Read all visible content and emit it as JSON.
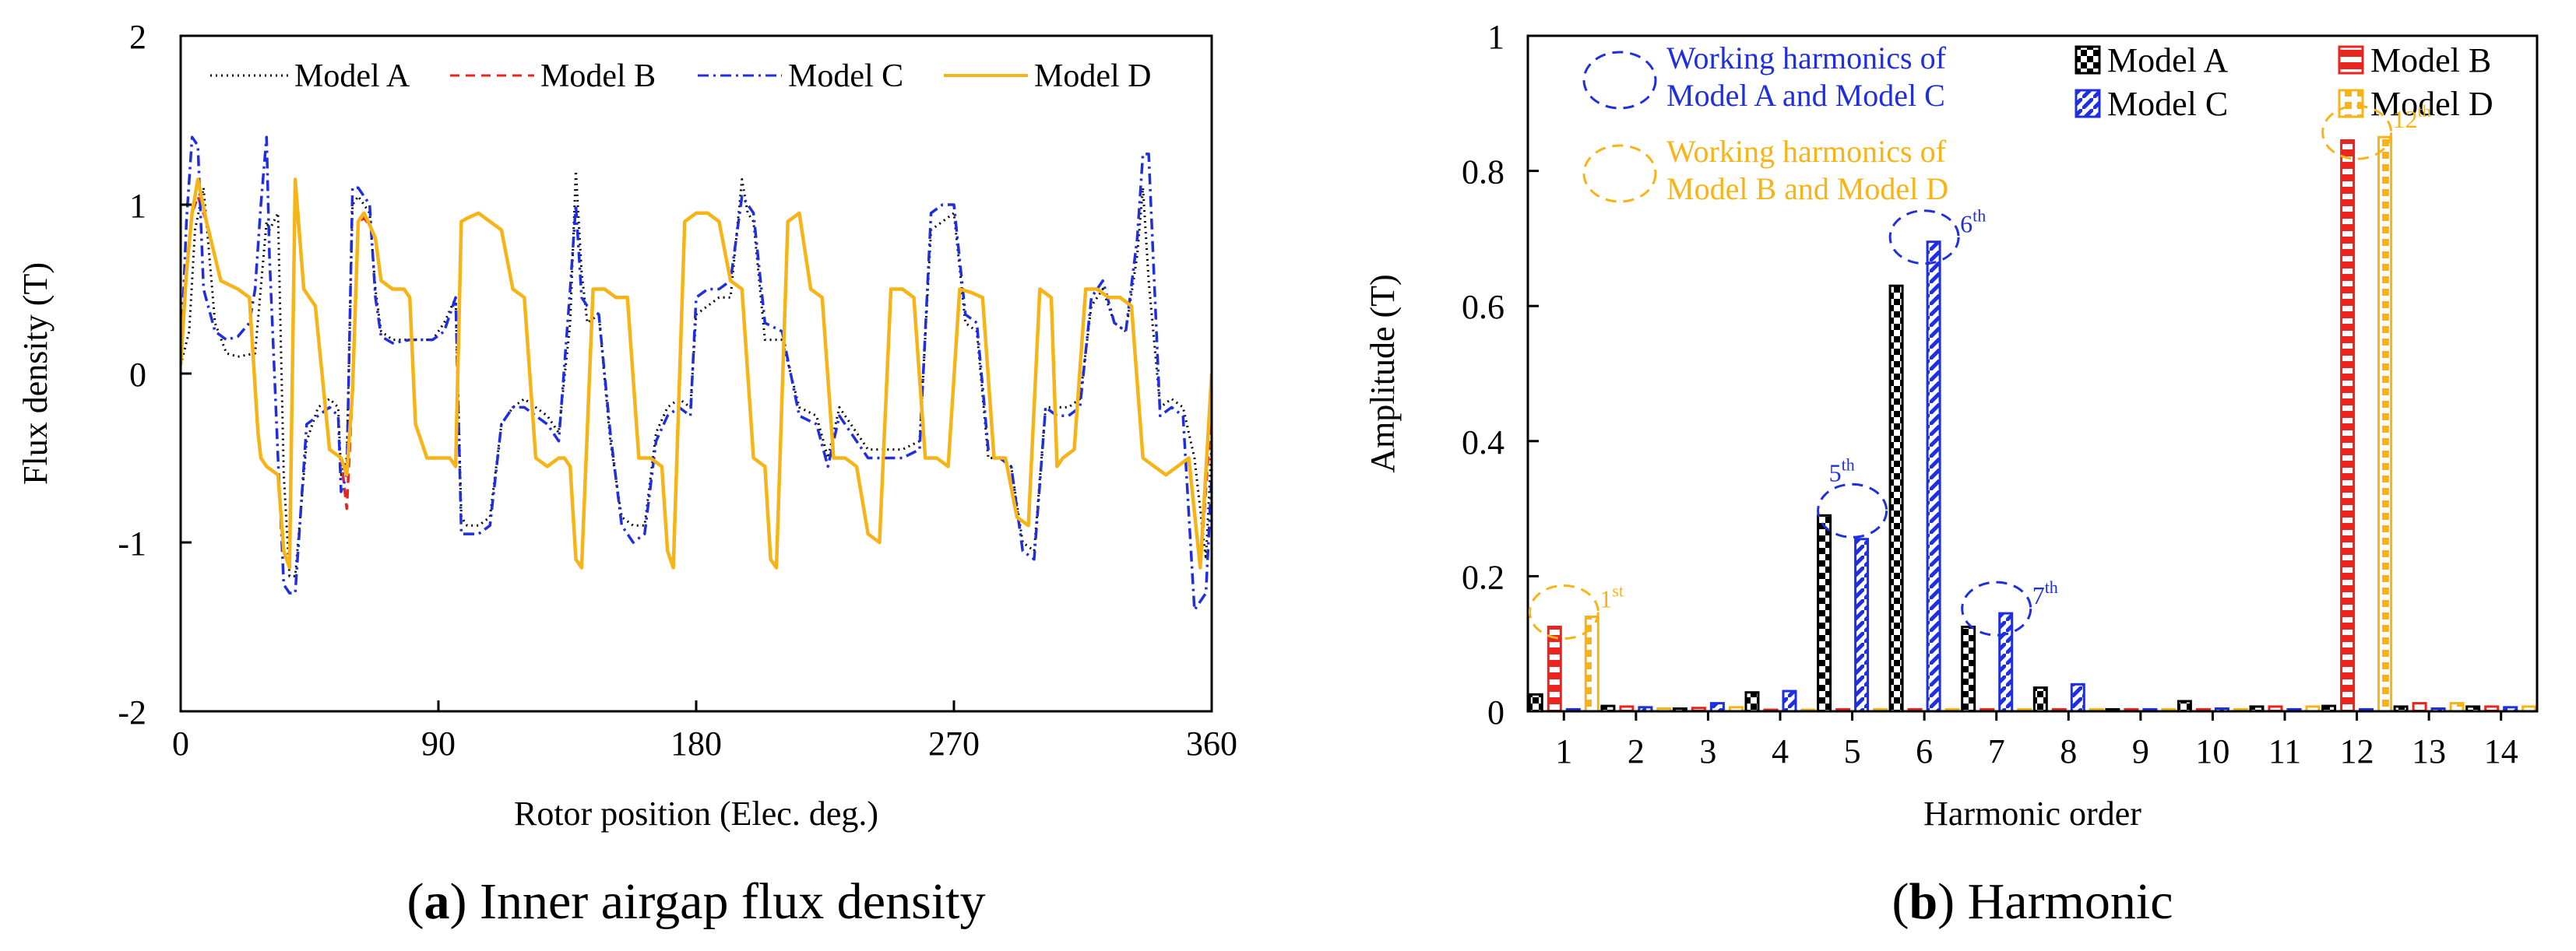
{
  "chart_data": [
    {
      "panel": "a",
      "type": "line",
      "caption_letter": "a",
      "caption_text": "Inner airgap flux density",
      "xlabel": "Rotor position (Elec. deg.)",
      "ylabel": "Flux density (T)",
      "xlim": [
        0,
        360
      ],
      "ylim": [
        -2,
        2
      ],
      "xticks": [
        0,
        90,
        180,
        270,
        360
      ],
      "yticks": [
        -2,
        -1,
        0,
        1,
        2
      ],
      "legend_placement": "top",
      "series": [
        {
          "name": "Model A",
          "color": "#000000",
          "dash": "dotted",
          "x": [
            0,
            3,
            5,
            8,
            12,
            16,
            20,
            26,
            30,
            31,
            34,
            36,
            38,
            40,
            44,
            48,
            52,
            55,
            56,
            58,
            60,
            62,
            64,
            66,
            68,
            70,
            74,
            80,
            88,
            92,
            96,
            98,
            100,
            104,
            108,
            112,
            116,
            120,
            124,
            128,
            132,
            136,
            138,
            140,
            142,
            146,
            150,
            154,
            158,
            162,
            166,
            170,
            174,
            178,
            180,
            184,
            188,
            192,
            196,
            198,
            200,
            204,
            210,
            216,
            222,
            226,
            230,
            234,
            240,
            246,
            252,
            258,
            262,
            266,
            270,
            274,
            278,
            282,
            286,
            290,
            294,
            298,
            302,
            306,
            310,
            314,
            318,
            322,
            326,
            330,
            334,
            336,
            338,
            342,
            346,
            350,
            354,
            358,
            360
          ],
          "y": [
            0.05,
            0.25,
            0.85,
            1.1,
            0.3,
            0.12,
            0.1,
            0.12,
            0.9,
            0.85,
            0.95,
            -0.6,
            -1.2,
            -1.2,
            -0.4,
            -0.2,
            -0.15,
            -0.2,
            -0.6,
            -0.5,
            1.0,
            1.05,
            1.0,
            0.95,
            0.5,
            0.25,
            0.2,
            0.2,
            0.2,
            0.3,
            0.45,
            -0.85,
            -0.9,
            -0.9,
            -0.85,
            -0.3,
            -0.2,
            -0.15,
            -0.2,
            -0.25,
            -0.35,
            0.3,
            1.2,
            0.6,
            0.3,
            0.35,
            -0.4,
            -0.85,
            -0.9,
            -0.9,
            -0.35,
            -0.2,
            -0.15,
            -0.2,
            0.35,
            0.4,
            0.45,
            0.45,
            1.15,
            0.95,
            0.9,
            0.2,
            0.2,
            -0.2,
            -0.25,
            -0.5,
            -0.2,
            -0.3,
            -0.45,
            -0.45,
            -0.45,
            -0.4,
            0.85,
            0.9,
            0.95,
            0.3,
            0.25,
            -0.5,
            -0.5,
            -0.55,
            -1.0,
            -1.05,
            -0.2,
            -0.2,
            -0.2,
            -0.15,
            0.4,
            0.5,
            0.3,
            0.25,
            0.7,
            1.1,
            0.55,
            -0.2,
            -0.15,
            -0.2,
            -0.5,
            -1.1,
            -0.4
          ]
        },
        {
          "name": "Model B",
          "color": "#e8251f",
          "dash": "dashed",
          "x": [
            0,
            2,
            4,
            6,
            9,
            14,
            20,
            24,
            27,
            28,
            30,
            34,
            36,
            38,
            40,
            43,
            47,
            52,
            56,
            58,
            60,
            62,
            64,
            66,
            68,
            70,
            74,
            78,
            80,
            82,
            86,
            90,
            94,
            96,
            98,
            100,
            104,
            108,
            112,
            116,
            120,
            124,
            128,
            132,
            134,
            136,
            138,
            140,
            144,
            148,
            152,
            156,
            160,
            164,
            168,
            170,
            172,
            176,
            180,
            184,
            188,
            192,
            196,
            200,
            204,
            206,
            208,
            212,
            216,
            220,
            224,
            228,
            232,
            236,
            240,
            244,
            248,
            252,
            256,
            260,
            264,
            268,
            272,
            276,
            280,
            284,
            288,
            292,
            296,
            300,
            304,
            306,
            308,
            312,
            316,
            320,
            324,
            328,
            332,
            336,
            340,
            344,
            348,
            352,
            356,
            360
          ],
          "y": [
            0.05,
            0.6,
            0.95,
            1.05,
            0.9,
            0.55,
            0.5,
            0.45,
            -0.35,
            -0.5,
            -0.55,
            -0.6,
            -1.05,
            -1.1,
            1.1,
            0.5,
            0.4,
            -0.45,
            -0.5,
            -0.8,
            -0.1,
            0.9,
            0.92,
            0.88,
            0.8,
            0.55,
            0.5,
            0.5,
            0.45,
            -0.3,
            -0.5,
            -0.5,
            -0.5,
            -0.55,
            0.9,
            0.92,
            0.95,
            0.9,
            0.85,
            0.5,
            0.45,
            -0.5,
            -0.55,
            -0.5,
            -0.5,
            -0.55,
            -1.1,
            -1.15,
            0.5,
            0.5,
            0.45,
            0.45,
            -0.5,
            -0.5,
            -0.55,
            -1.05,
            -1.1,
            0.9,
            0.95,
            0.95,
            0.9,
            0.55,
            0.5,
            -0.5,
            -0.55,
            -1.1,
            -1.15,
            0.9,
            0.95,
            0.5,
            0.45,
            -0.5,
            -0.5,
            -0.55,
            -0.95,
            -1.0,
            0.5,
            0.5,
            0.45,
            -0.5,
            -0.5,
            -0.55,
            0.5,
            0.48,
            0.45,
            -0.5,
            -0.5,
            -0.85,
            -0.9,
            0.5,
            0.45,
            -0.55,
            -0.5,
            -0.45,
            0.5,
            0.5,
            0.45,
            0.45,
            0.4,
            -0.5,
            -0.55,
            -0.6,
            -0.55,
            -0.5,
            -1.15,
            -0.2
          ]
        },
        {
          "name": "Model C",
          "color": "#1f2fe0",
          "dash": "dashdot",
          "x": [
            0,
            2,
            4,
            6,
            8,
            12,
            16,
            20,
            24,
            26,
            28,
            30,
            31,
            34,
            36,
            38,
            40,
            44,
            48,
            52,
            55,
            56,
            58,
            60,
            62,
            64,
            66,
            68,
            70,
            74,
            80,
            88,
            92,
            96,
            98,
            100,
            104,
            108,
            112,
            116,
            120,
            124,
            128,
            132,
            136,
            138,
            140,
            142,
            146,
            150,
            154,
            158,
            162,
            166,
            170,
            174,
            178,
            180,
            184,
            188,
            192,
            196,
            198,
            200,
            204,
            210,
            216,
            222,
            226,
            230,
            234,
            240,
            246,
            252,
            258,
            262,
            266,
            270,
            274,
            278,
            282,
            286,
            290,
            294,
            298,
            302,
            306,
            310,
            314,
            318,
            322,
            326,
            330,
            334,
            336,
            338,
            342,
            346,
            350,
            354,
            358,
            360
          ],
          "y": [
            0.05,
            0.9,
            1.4,
            1.35,
            0.5,
            0.25,
            0.2,
            0.22,
            0.3,
            0.5,
            1.0,
            1.4,
            0.7,
            -0.5,
            -1.25,
            -1.3,
            -1.3,
            -0.3,
            -0.25,
            -0.2,
            -0.25,
            -0.7,
            -0.6,
            1.1,
            1.1,
            1.05,
            1.0,
            0.45,
            0.22,
            0.18,
            0.2,
            0.2,
            0.25,
            0.45,
            -0.95,
            -0.95,
            -0.95,
            -0.9,
            -0.3,
            -0.2,
            -0.2,
            -0.25,
            -0.3,
            -0.4,
            0.5,
            1.0,
            0.45,
            0.4,
            0.35,
            -0.35,
            -0.9,
            -1.0,
            -0.95,
            -0.4,
            -0.25,
            -0.2,
            -0.25,
            0.45,
            0.5,
            0.5,
            0.55,
            1.05,
            1.0,
            0.95,
            0.3,
            0.25,
            -0.25,
            -0.3,
            -0.55,
            -0.25,
            -0.35,
            -0.5,
            -0.5,
            -0.5,
            -0.45,
            0.95,
            1.0,
            1.0,
            0.35,
            0.3,
            -0.45,
            -0.5,
            -0.55,
            -1.05,
            -1.1,
            -0.2,
            -0.25,
            -0.25,
            -0.2,
            0.45,
            0.55,
            0.3,
            0.25,
            0.8,
            1.3,
            1.3,
            -0.25,
            -0.2,
            -0.25,
            -1.4,
            -1.3,
            -0.6
          ]
        },
        {
          "name": "Model D",
          "color": "#f6b416",
          "dash": "solid",
          "x": [
            0,
            2,
            4,
            6,
            9,
            14,
            20,
            24,
            27,
            28,
            30,
            34,
            36,
            38,
            40,
            43,
            47,
            52,
            56,
            58,
            60,
            62,
            64,
            66,
            68,
            70,
            74,
            78,
            80,
            82,
            86,
            90,
            94,
            96,
            98,
            100,
            104,
            108,
            112,
            116,
            120,
            124,
            128,
            132,
            134,
            136,
            138,
            140,
            144,
            148,
            152,
            156,
            160,
            164,
            168,
            170,
            172,
            176,
            180,
            184,
            188,
            192,
            196,
            200,
            204,
            206,
            208,
            212,
            216,
            220,
            224,
            228,
            232,
            236,
            240,
            244,
            248,
            252,
            256,
            260,
            264,
            268,
            272,
            276,
            280,
            284,
            288,
            292,
            296,
            300,
            304,
            306,
            308,
            312,
            316,
            320,
            324,
            328,
            332,
            336,
            340,
            344,
            348,
            352,
            356,
            360
          ],
          "y": [
            0.05,
            0.6,
            0.95,
            1.15,
            0.9,
            0.55,
            0.5,
            0.45,
            -0.35,
            -0.5,
            -0.55,
            -0.6,
            -1.05,
            -1.15,
            1.15,
            0.5,
            0.4,
            -0.45,
            -0.5,
            -0.6,
            -0.1,
            0.9,
            0.95,
            0.88,
            0.8,
            0.55,
            0.5,
            0.5,
            0.45,
            -0.3,
            -0.5,
            -0.5,
            -0.5,
            -0.55,
            0.9,
            0.92,
            0.95,
            0.9,
            0.85,
            0.5,
            0.45,
            -0.5,
            -0.55,
            -0.5,
            -0.5,
            -0.55,
            -1.1,
            -1.15,
            0.5,
            0.5,
            0.45,
            0.45,
            -0.5,
            -0.5,
            -0.55,
            -1.05,
            -1.15,
            0.9,
            0.95,
            0.95,
            0.9,
            0.55,
            0.5,
            -0.5,
            -0.55,
            -1.1,
            -1.15,
            0.9,
            0.95,
            0.5,
            0.45,
            -0.5,
            -0.5,
            -0.55,
            -0.95,
            -1.0,
            0.5,
            0.5,
            0.45,
            -0.5,
            -0.5,
            -0.55,
            0.5,
            0.48,
            0.45,
            -0.5,
            -0.5,
            -0.85,
            -0.9,
            0.5,
            0.45,
            -0.55,
            -0.5,
            -0.45,
            0.5,
            0.5,
            0.45,
            0.45,
            0.4,
            -0.5,
            -0.55,
            -0.6,
            -0.55,
            -0.5,
            -1.15,
            0.0
          ]
        }
      ]
    },
    {
      "panel": "b",
      "type": "bar",
      "caption_letter": "b",
      "caption_text": "Harmonic",
      "xlabel": "Harmonic order",
      "ylabel": "Amplitude (T)",
      "ylim": [
        0,
        1
      ],
      "yticks": [
        0,
        0.2,
        0.4,
        0.6,
        0.8,
        1
      ],
      "ytick_labels": [
        "0",
        "0.2",
        "0.4",
        "0.6",
        "0.8",
        "1"
      ],
      "categories": [
        "1",
        "2",
        "3",
        "4",
        "5",
        "6",
        "7",
        "8",
        "9",
        "10",
        "11",
        "12",
        "13",
        "14"
      ],
      "series": [
        {
          "name": "Model A",
          "color": "#000000",
          "pattern": "checker",
          "values": [
            0.025,
            0.008,
            0.004,
            0.028,
            0.29,
            0.63,
            0.125,
            0.035,
            0.003,
            0.015,
            0.007,
            0.008,
            0.007,
            0.007
          ]
        },
        {
          "name": "Model B",
          "color": "#e8251f",
          "pattern": "checker",
          "values": [
            0.125,
            0.007,
            0.005,
            0.002,
            0.003,
            0.003,
            0.003,
            0.003,
            0.003,
            0.003,
            0.007,
            0.845,
            0.012,
            0.007
          ]
        },
        {
          "name": "Model C",
          "color": "#1f2fe0",
          "pattern": "diagonal",
          "values": [
            0.003,
            0.006,
            0.012,
            0.03,
            0.255,
            0.695,
            0.145,
            0.04,
            0.003,
            0.004,
            0.003,
            0.003,
            0.004,
            0.006
          ]
        },
        {
          "name": "Model D",
          "color": "#f6b416",
          "pattern": "squares",
          "values": [
            0.14,
            0.004,
            0.006,
            0.002,
            0.003,
            0.003,
            0.003,
            0.003,
            0.003,
            0.003,
            0.007,
            0.85,
            0.012,
            0.007
          ]
        }
      ],
      "legend_notes": [
        {
          "text_line1": "Working harmonics of",
          "text_line2": "Model A and Model C",
          "color": "#1f2fe0"
        },
        {
          "text_line1": "Working harmonics of",
          "text_line2": "Model B and Model D",
          "color": "#f6b416"
        }
      ],
      "annotations": [
        {
          "label_base": "1",
          "label_sup": "st",
          "category": "1",
          "color": "#f6b416"
        },
        {
          "label_base": "5",
          "label_sup": "th",
          "category": "5",
          "color": "#1f2fe0"
        },
        {
          "label_base": "6",
          "label_sup": "th",
          "category": "6",
          "color": "#1f2fe0"
        },
        {
          "label_base": "7",
          "label_sup": "th",
          "category": "7",
          "color": "#1f2fe0"
        },
        {
          "label_base": "12",
          "label_sup": "th",
          "category": "12",
          "color": "#f6b416"
        }
      ]
    }
  ]
}
